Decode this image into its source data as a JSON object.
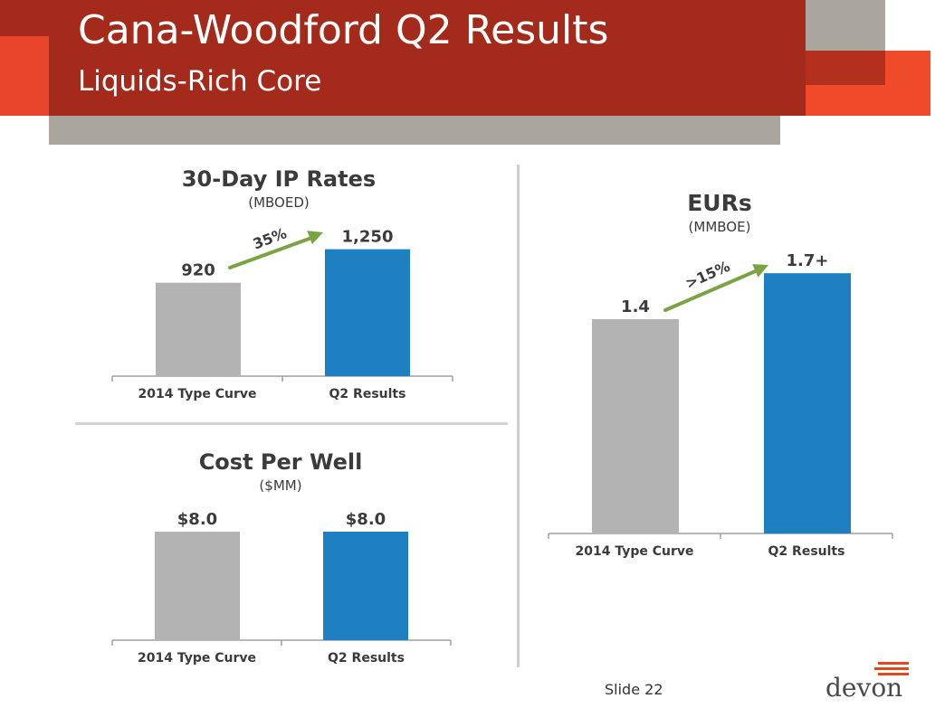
{
  "header": {
    "title": "Cana-Woodford Q2 Results",
    "subtitle": "Liquids-Rich Core"
  },
  "colors": {
    "header_red": "#a42a1c",
    "accent_orange": "#ef4a2a",
    "header_gray": "#aaa59d",
    "bar_gray": "#b3b3b3",
    "bar_blue": "#1f80c1",
    "arrow_green": "#7aa444"
  },
  "chart_data": [
    {
      "type": "bar",
      "title": "30-Day IP Rates",
      "unit": "(MBOED)",
      "categories": [
        "2014 Type Curve",
        "Q2 Results"
      ],
      "values": [
        920,
        1250
      ],
      "value_labels": [
        "920",
        "1,250"
      ],
      "ylim": [
        0,
        1300
      ],
      "annotation": "35%"
    },
    {
      "type": "bar",
      "title": "Cost Per Well",
      "unit": "($MM)",
      "categories": [
        "2014 Type Curve",
        "Q2 Results"
      ],
      "values": [
        8.0,
        8.0
      ],
      "value_labels": [
        "$8.0",
        "$8.0"
      ],
      "ylim": [
        0,
        8.2
      ]
    },
    {
      "type": "bar",
      "title": "EURs",
      "unit": "(MMBOE)",
      "categories": [
        "2014 Type Curve",
        "Q2 Results"
      ],
      "values": [
        1.4,
        1.7
      ],
      "value_labels": [
        "1.4",
        "1.7+"
      ],
      "ylim": [
        0,
        1.76
      ],
      "annotation": ">15%"
    }
  ],
  "footer": {
    "slide_number": "Slide 22",
    "logo_text": "devon"
  }
}
